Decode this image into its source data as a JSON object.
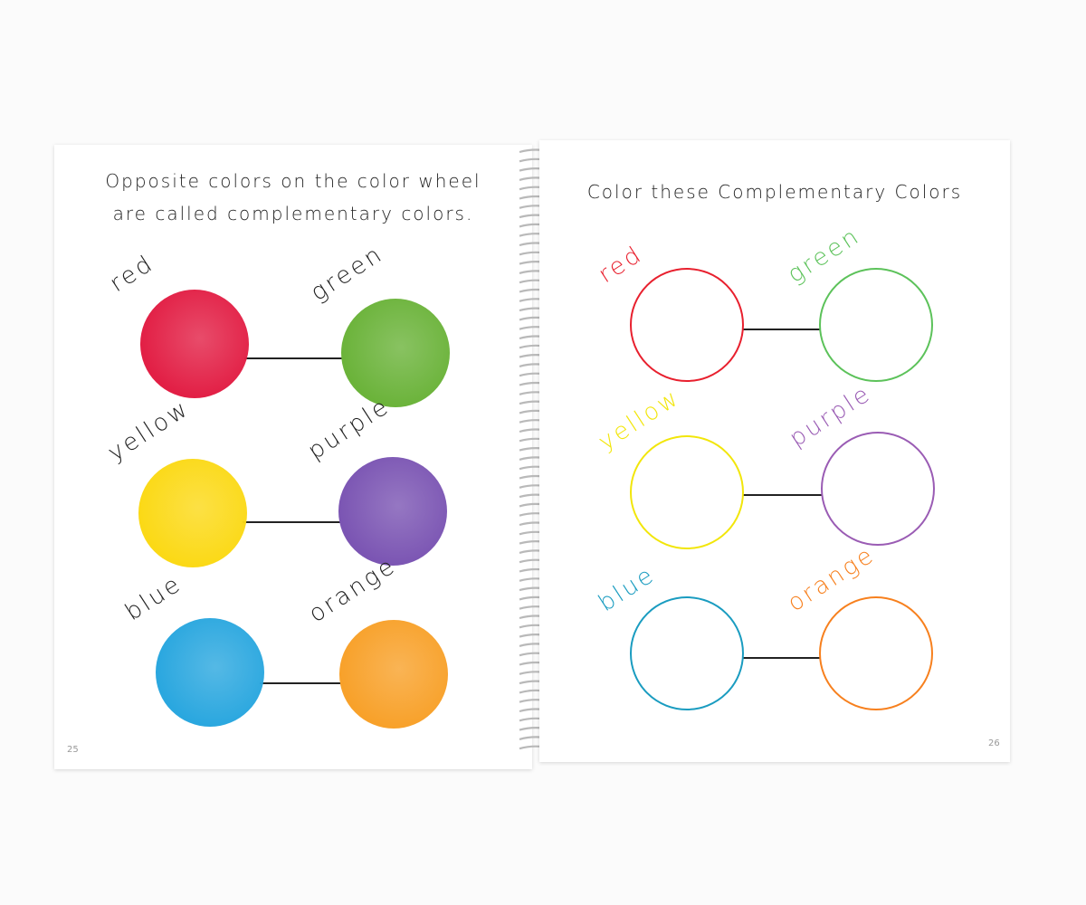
{
  "left_page": {
    "heading_line1": "Opposite colors on the color wheel",
    "heading_line2": "are called complementary colors.",
    "pairs": [
      {
        "a": {
          "label": "red",
          "color": "#e21f45"
        },
        "b": {
          "label": "green",
          "color": "#6bb33a"
        }
      },
      {
        "a": {
          "label": "yellow",
          "color": "#fbd916"
        },
        "b": {
          "label": "purple",
          "color": "#7b55b3"
        }
      },
      {
        "a": {
          "label": "blue",
          "color": "#2aa7df"
        },
        "b": {
          "label": "orange",
          "color": "#f8a12a"
        }
      }
    ],
    "page_number": "25"
  },
  "right_page": {
    "heading": "Color these Complementary Colors",
    "pairs": [
      {
        "a": {
          "label": "red",
          "color": "#e8202e"
        },
        "b": {
          "label": "green",
          "color": "#5cc25a"
        }
      },
      {
        "a": {
          "label": "yellow",
          "color": "#f2e60a"
        },
        "b": {
          "label": "purple",
          "color": "#9a5cb4"
        }
      },
      {
        "a": {
          "label": "blue",
          "color": "#1a9cc0"
        },
        "b": {
          "label": "orange",
          "color": "#f7801e"
        }
      }
    ],
    "page_number": "26"
  }
}
